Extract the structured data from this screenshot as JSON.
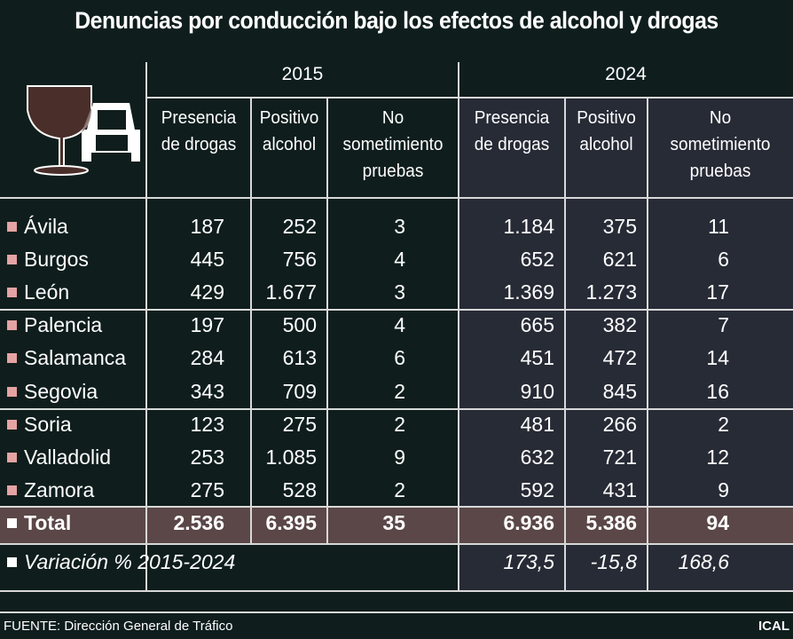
{
  "title": "Denuncias por conducción bajo los efectos de alcohol y drogas",
  "icon": "wine-glass-and-car-icon",
  "colors": {
    "background": "#0f1e1c",
    "col2024": "#272b36",
    "total_row": "#5b4747",
    "bullet": "#e6a3a3"
  },
  "years": [
    "2015",
    "2024"
  ],
  "subheaders": [
    "Presencia\nde drogas",
    "Positivo\nalcohol",
    "No\nsometimiento\npruebas",
    "Presencia\nde drogas",
    "Positivo\nalcohol",
    "No\nsometimiento\npruebas"
  ],
  "chart_data": {
    "type": "table",
    "title": "Denuncias por conducción bajo los efectos de alcohol y drogas",
    "columns": [
      "2015 Presencia de drogas",
      "2015 Positivo alcohol",
      "2015 No sometimiento pruebas",
      "2024 Presencia de drogas",
      "2024 Positivo alcohol",
      "2024 No sometimiento pruebas"
    ],
    "rows": [
      {
        "name": "Ávila",
        "values": [
          "187",
          "252",
          "3",
          "1.184",
          "375",
          "11"
        ]
      },
      {
        "name": "Burgos",
        "values": [
          "445",
          "756",
          "4",
          "652",
          "621",
          "6"
        ]
      },
      {
        "name": "León",
        "values": [
          "429",
          "1.677",
          "3",
          "1.369",
          "1.273",
          "17"
        ]
      },
      {
        "name": "Palencia",
        "values": [
          "197",
          "500",
          "4",
          "665",
          "382",
          "7"
        ]
      },
      {
        "name": "Salamanca",
        "values": [
          "284",
          "613",
          "6",
          "451",
          "472",
          "14"
        ]
      },
      {
        "name": "Segovia",
        "values": [
          "343",
          "709",
          "2",
          "910",
          "845",
          "16"
        ]
      },
      {
        "name": "Soria",
        "values": [
          "123",
          "275",
          "2",
          "481",
          "266",
          "2"
        ]
      },
      {
        "name": "Valladolid",
        "values": [
          "253",
          "1.085",
          "9",
          "632",
          "721",
          "12"
        ]
      },
      {
        "name": "Zamora",
        "values": [
          "275",
          "528",
          "2",
          "592",
          "431",
          "9"
        ]
      }
    ],
    "total": {
      "name": "Total",
      "values": [
        "2.536",
        "6.395",
        "35",
        "6.936",
        "5.386",
        "94"
      ]
    },
    "variation": {
      "name": "Variación % 2015-2024",
      "values": [
        "",
        "",
        "",
        "173,5",
        "-15,8",
        "168,6"
      ]
    }
  },
  "footer": {
    "source": "FUENTE: Dirección General de Tráfico",
    "agency": "ICAL"
  }
}
